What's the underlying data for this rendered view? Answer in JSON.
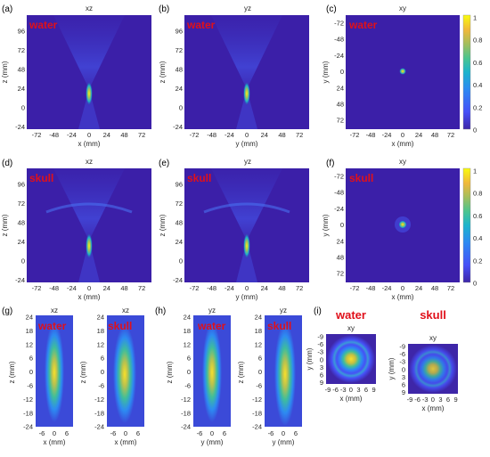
{
  "panels": {
    "a": {
      "label": "(a)",
      "title": "xz",
      "medium": "water",
      "xlabel": "x (mm)",
      "ylabel": "z (mm)"
    },
    "b": {
      "label": "(b)",
      "title": "yz",
      "medium": "water",
      "xlabel": "y (mm)",
      "ylabel": "z (mm)"
    },
    "c": {
      "label": "(c)",
      "title": "xy",
      "medium": "water",
      "xlabel": "x (mm)",
      "ylabel": "y (mm)"
    },
    "d": {
      "label": "(d)",
      "title": "xz",
      "medium": "skull",
      "xlabel": "x (mm)",
      "ylabel": "z (mm)"
    },
    "e": {
      "label": "(e)",
      "title": "yz",
      "medium": "skull",
      "xlabel": "y (mm)",
      "ylabel": "z (mm)"
    },
    "f": {
      "label": "(f)",
      "title": "xy",
      "medium": "skull",
      "xlabel": "x (mm)",
      "ylabel": "y (mm)"
    },
    "g": {
      "label": "(g)",
      "title_left": "xz",
      "title_right": "xz",
      "medium_left": "water",
      "medium_right": "skull",
      "xlabel": "x (mm)",
      "ylabel": "z (mm)"
    },
    "h": {
      "label": "(h)",
      "title_left": "yz",
      "title_right": "yz",
      "medium_left": "water",
      "medium_right": "skull",
      "xlabel": "y (mm)",
      "ylabel": "z (mm)"
    },
    "i": {
      "label": "(i)",
      "title_left": "xy",
      "title_right": "xy",
      "medium_left": "water",
      "medium_right": "skull",
      "xlabel": "x (mm)",
      "ylabel": "y (mm)"
    }
  },
  "ticks": {
    "wide_x": [
      "-72",
      "-48",
      "-24",
      "0",
      "24",
      "48",
      "72"
    ],
    "wide_z": [
      "96",
      "72",
      "48",
      "24",
      "0",
      "-24"
    ],
    "wide_y": [
      "-72",
      "-48",
      "-24",
      "0",
      "24",
      "48",
      "72"
    ],
    "zoom_x": [
      "-6",
      "0",
      "6"
    ],
    "zoom_z": [
      "24",
      "18",
      "12",
      "6",
      "0",
      "-6",
      "-12",
      "-18",
      "-24"
    ],
    "xy_x": [
      "-9",
      "-6",
      "-3",
      "0",
      "3",
      "6",
      "9"
    ],
    "xy_y": [
      "-9",
      "-6",
      "-3",
      "0",
      "3",
      "6",
      "9"
    ],
    "colorbar": [
      "1",
      "0.8",
      "0.6",
      "0.4",
      "0.2",
      "0"
    ]
  },
  "colors": {
    "background": "#3b1fa8",
    "label_red": "#e0101a",
    "colormap": [
      "#3e26a8",
      "#4650f7",
      "#2d8af2",
      "#1cb4cc",
      "#49c490",
      "#a5be5b",
      "#f0b83a",
      "#f9e02a",
      "#f9fb0e"
    ]
  }
}
